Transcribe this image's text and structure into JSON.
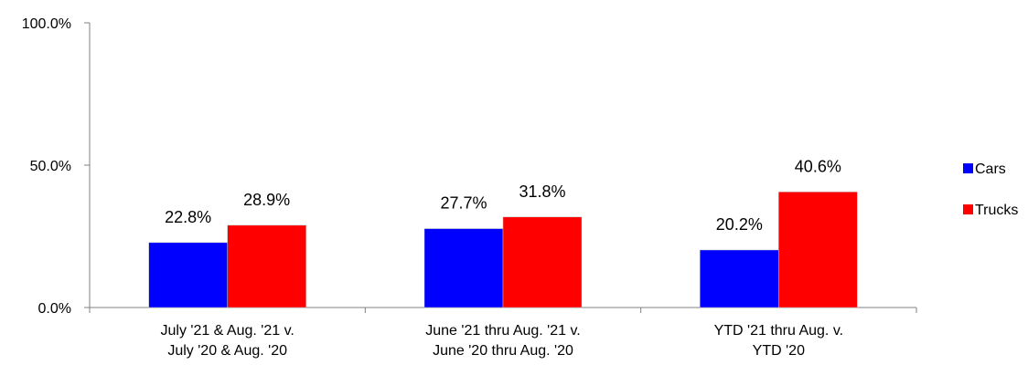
{
  "chart_data": {
    "type": "bar",
    "categories": [
      [
        "July '21 & Aug. '21 v.",
        "July '20 & Aug. '20"
      ],
      [
        "June '21 thru Aug. '21 v.",
        "June '20 thru Aug. '20"
      ],
      [
        "YTD '21 thru Aug. v.",
        "YTD '20"
      ]
    ],
    "series": [
      {
        "name": "Cars",
        "color": "#0000ff",
        "values": [
          22.8,
          27.7,
          20.2
        ],
        "labels": [
          "22.8%",
          "27.7%",
          "20.2%"
        ]
      },
      {
        "name": "Trucks",
        "color": "#ff0000",
        "values": [
          28.9,
          31.8,
          40.6
        ],
        "labels": [
          "28.9%",
          "31.8%",
          "40.6%"
        ]
      }
    ],
    "ylim": [
      0,
      100
    ],
    "yticks": [
      0,
      50,
      100
    ],
    "ytick_labels": [
      "0.0%",
      "50.0%",
      "100.0%"
    ],
    "title": "",
    "xlabel": "",
    "ylabel": "",
    "grid": false,
    "legend_position": "right"
  }
}
